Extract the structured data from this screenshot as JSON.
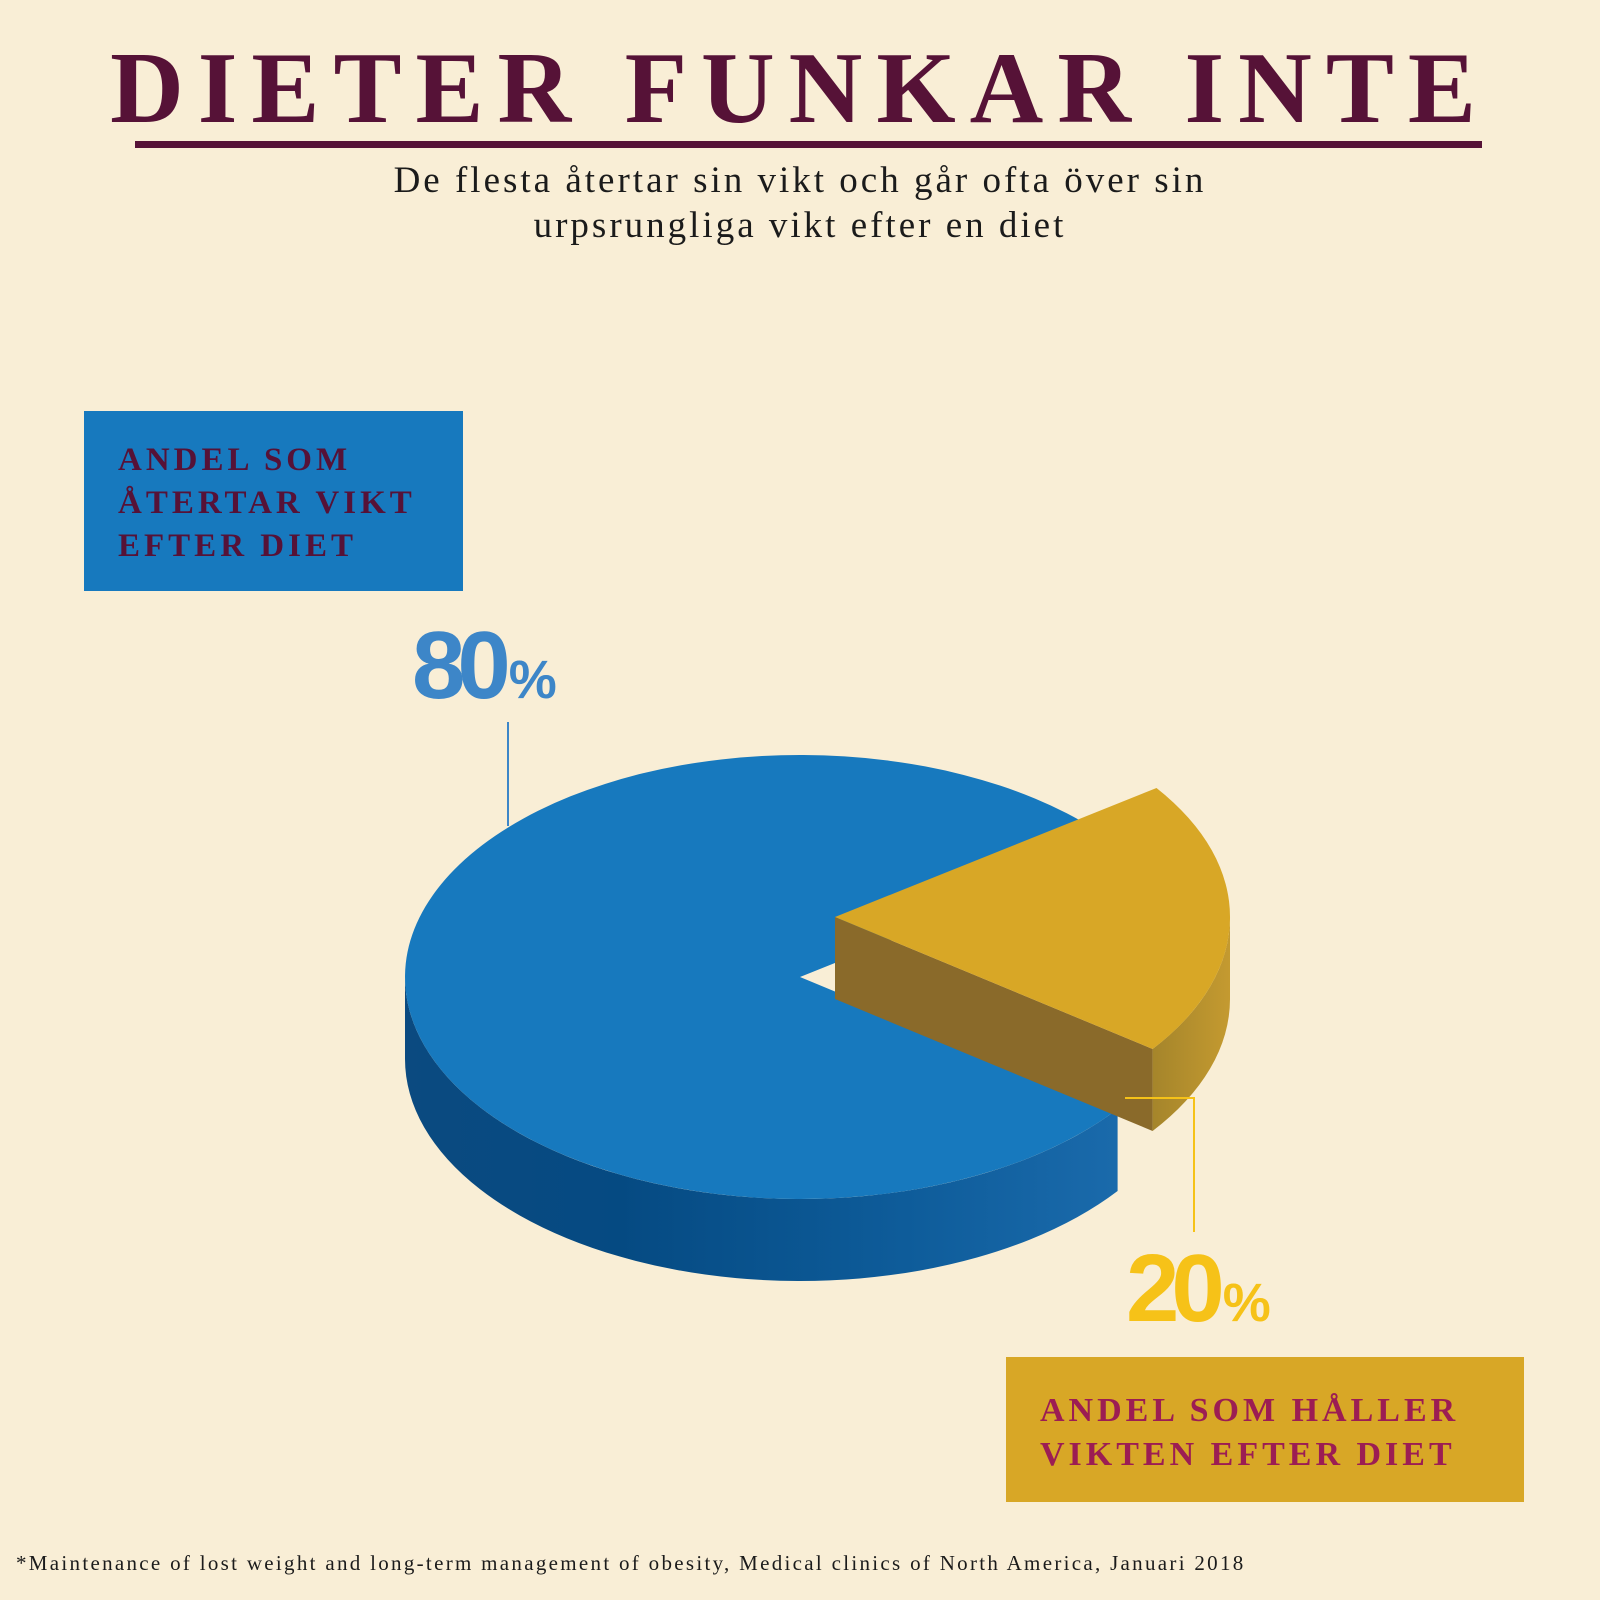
{
  "title": "DIETER FUNKAR INTE",
  "subtitle_line1": "De flesta återtar sin vikt och går ofta över sin",
  "subtitle_line2": "urpsrungliga vikt efter en diet",
  "footnote": "*Maintenance of lost weight and long-term management of obesity, Medical clinics of North America, Januari 2018",
  "chart_data": {
    "type": "pie",
    "style": "3d-exploded",
    "slices": [
      {
        "label": "ANDEL SOM ÅTERTAR VIKT EFTER DIET",
        "value": 80,
        "display_number": "80",
        "display_unit": "%",
        "color": "#1779be"
      },
      {
        "label": "ANDEL SOM HÅLLER VIKTEN EFTER DIET",
        "value": 20,
        "display_number": "20",
        "display_unit": "%",
        "color": "#d8a726"
      }
    ]
  },
  "colors": {
    "background": "#f9eed6",
    "title": "#561237",
    "blue": "#1779be",
    "gold": "#d8a726",
    "blue_percent": "#3d86c8",
    "gold_percent": "#f6c218"
  }
}
